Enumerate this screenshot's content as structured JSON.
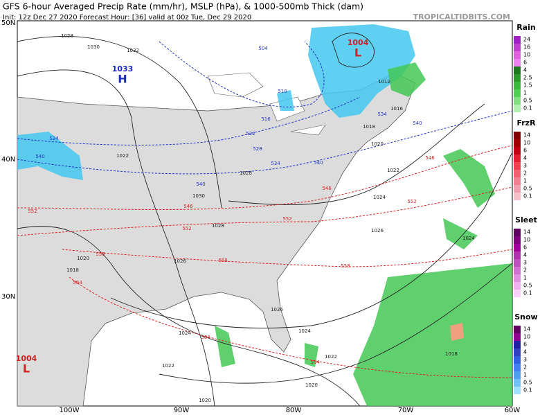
{
  "header": {
    "title": "GFS 6-hour Averaged Precip Rate (mm/hr), MSLP (hPa), & 1000-500mb Thick (dam)",
    "subtitle": "Init: 12z Dec 27 2020   Forecast Hour: [36]   valid at 00z Tue, Dec 29 2020",
    "credit": "TROPICALTIDBITS.COM"
  },
  "map": {
    "lat_labels": [
      "50N",
      "40N",
      "30N"
    ],
    "lon_labels": [
      "100W",
      "90W",
      "80W",
      "70W",
      "60W"
    ],
    "pressure_centers": [
      {
        "letter": "H",
        "value": "1033"
      },
      {
        "letter": "L",
        "value": "1004"
      },
      {
        "letter": "L",
        "value": "1004"
      }
    ],
    "isobar_labels": [
      "1028",
      "1030",
      "1032",
      "1022",
      "1028",
      "1030",
      "1028",
      "1026",
      "1020",
      "1018",
      "1026",
      "1024",
      "1024",
      "1022",
      "1020",
      "1020",
      "1022",
      "1018",
      "1020",
      "1022",
      "1024",
      "1026",
      "1024",
      "1016",
      "1012",
      "1018"
    ],
    "thickness_labels": [
      "504",
      "510",
      "516",
      "522",
      "528",
      "534",
      "534",
      "540",
      "540",
      "540",
      "540",
      "534",
      "546",
      "546",
      "552",
      "552",
      "552",
      "546",
      "552",
      "558",
      "558",
      "558",
      "564",
      "564",
      "564"
    ]
  },
  "legend": [
    {
      "title": "Rain",
      "ticks": [
        "24",
        "16",
        "10",
        "6",
        "4",
        "2.5",
        "1.5",
        "1",
        "0.5",
        "0.1"
      ]
    },
    {
      "title": "FrzR",
      "ticks": [
        "14",
        "10",
        "6",
        "4",
        "3",
        "2",
        "1",
        "0.5",
        "0.1"
      ]
    },
    {
      "title": "Sleet",
      "ticks": [
        "14",
        "10",
        "6",
        "4",
        "3",
        "2",
        "1",
        "0.5",
        "0.1"
      ]
    },
    {
      "title": "Snow",
      "ticks": [
        "14",
        "10",
        "6",
        "4",
        "3",
        "2",
        "1",
        "0.5",
        "0.1"
      ]
    }
  ]
}
